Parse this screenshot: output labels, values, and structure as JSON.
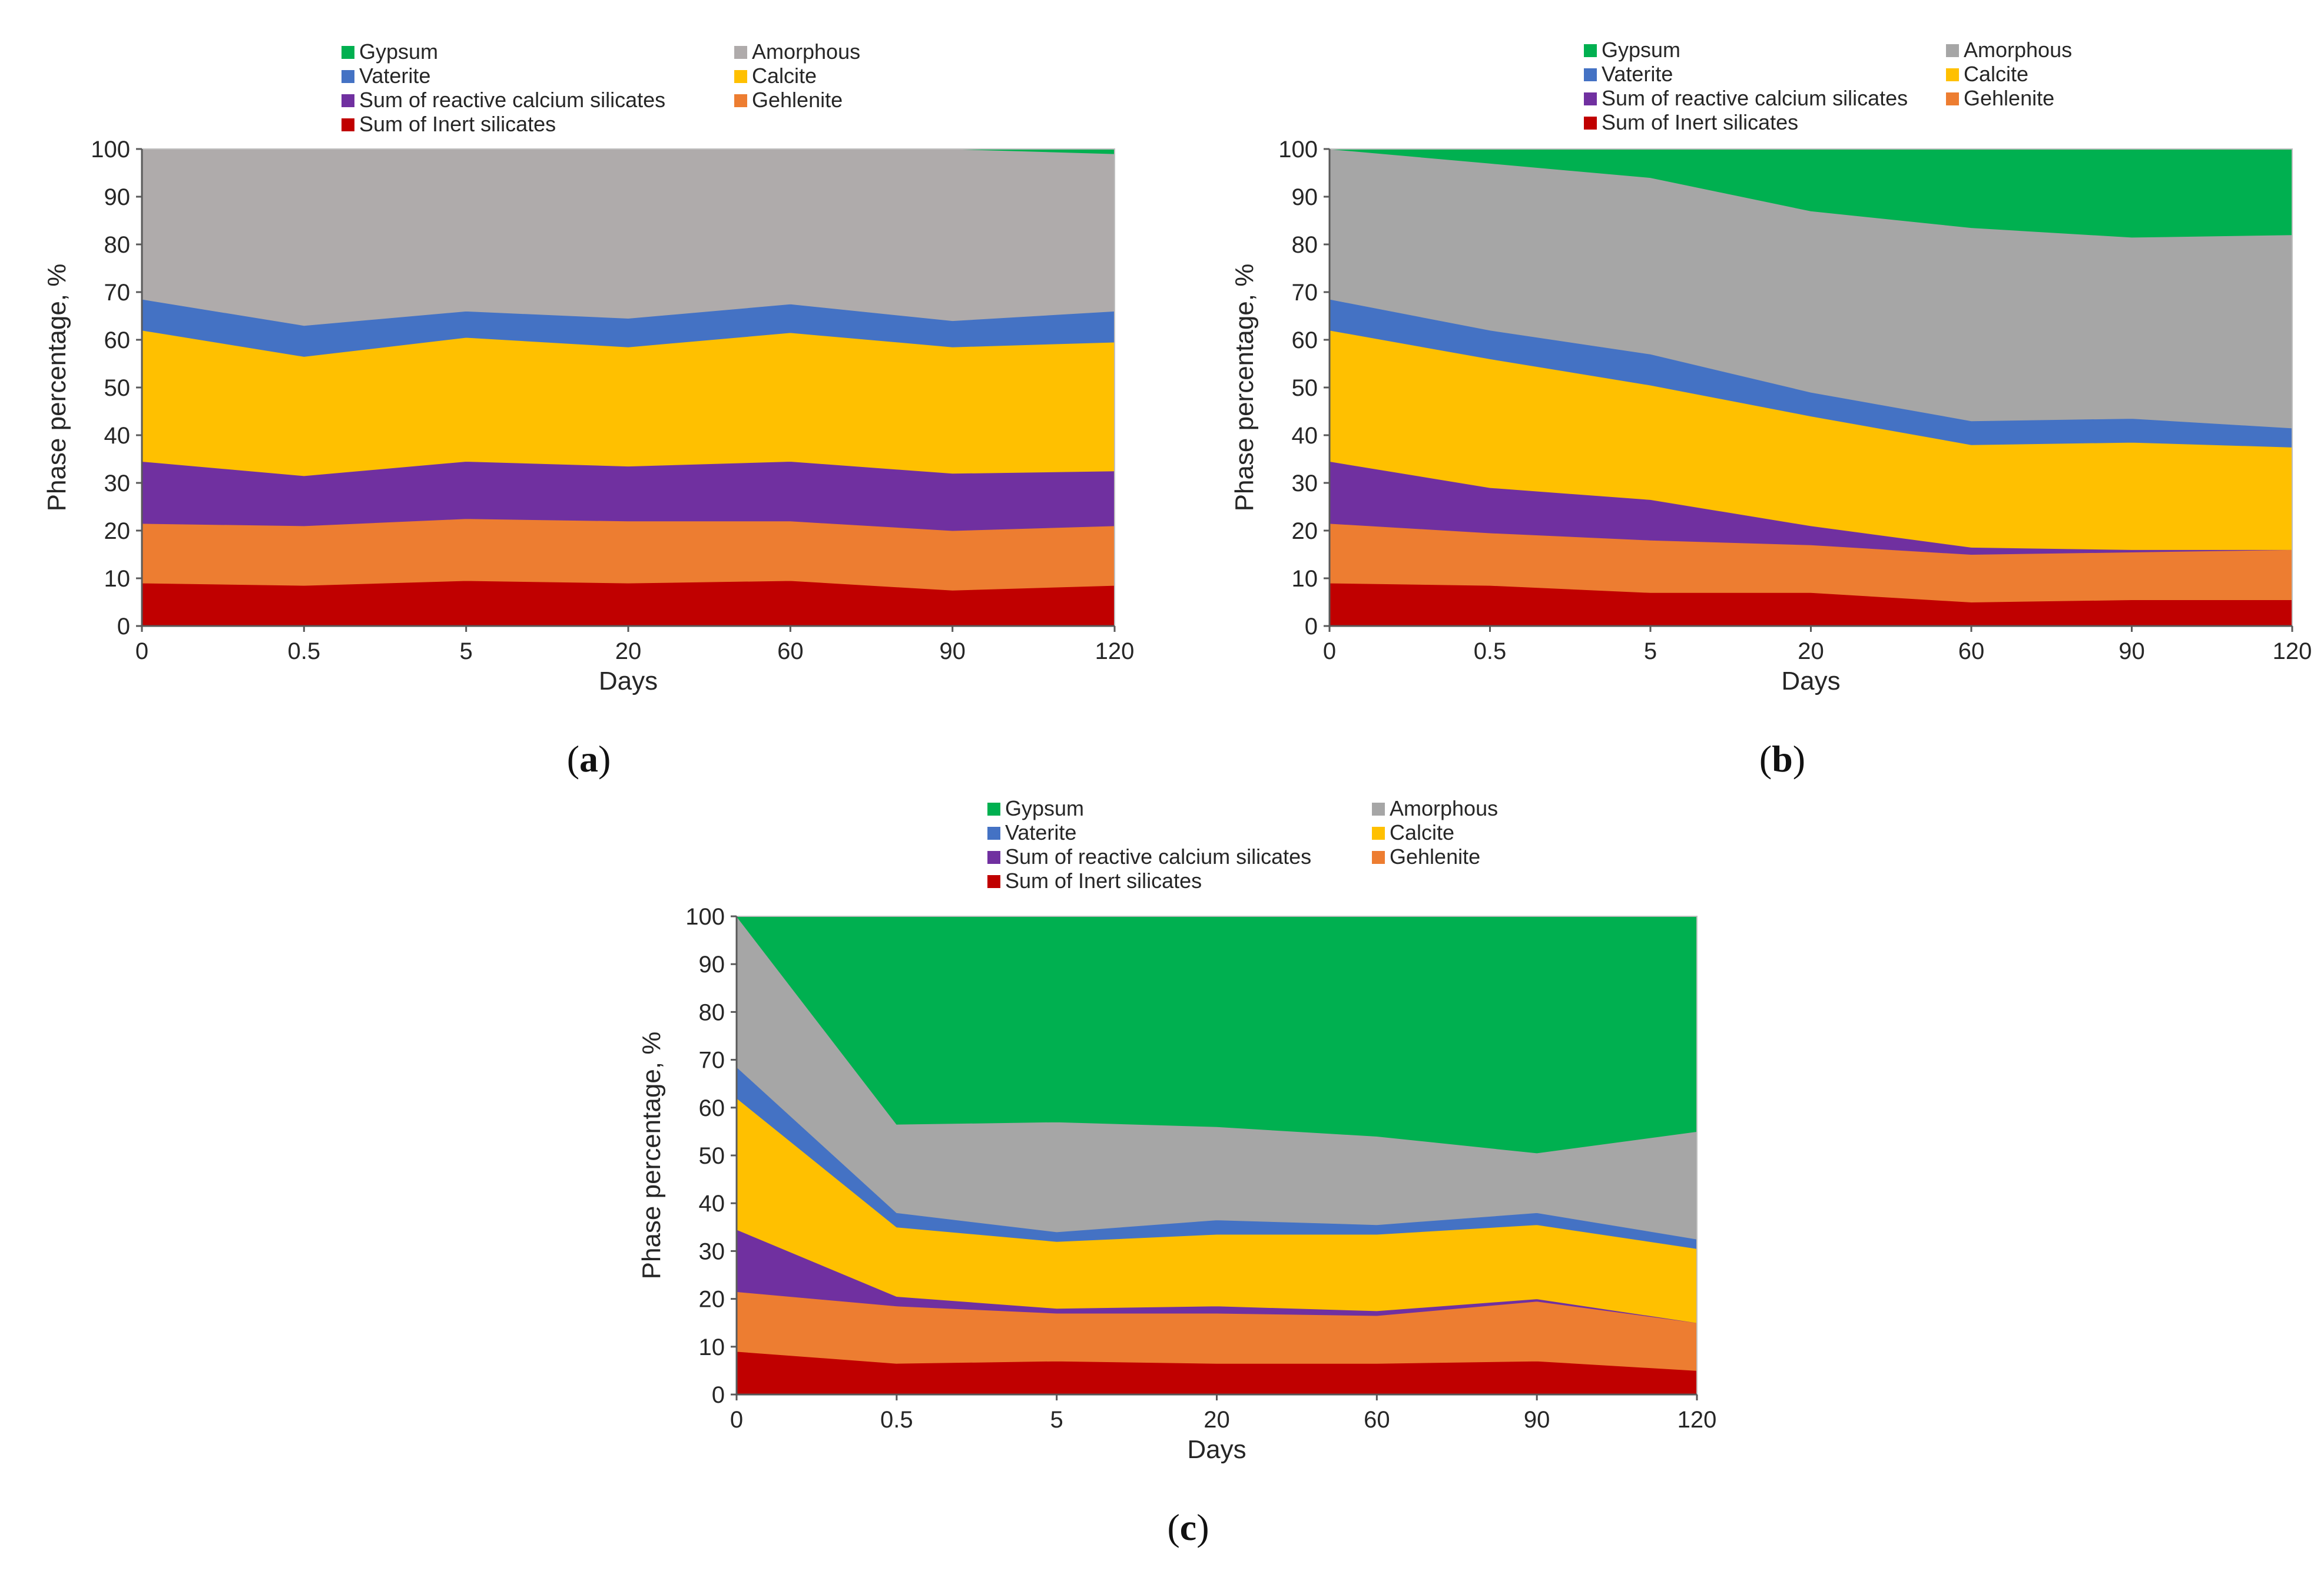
{
  "colors": {
    "Gypsum": "#00B050",
    "Amorphous": "#A6A6A6",
    "Vaterite": "#4472C4",
    "Calcite": "#FFC000",
    "Sum of reactive calcium silicates": "#7030A0",
    "Gehlenite": "#ED7D31",
    "Sum of Inert silicates": "#C00000",
    "Amorphous_a": "#AFABAB"
  },
  "legend_order": [
    "Gypsum",
    "Amorphous",
    "Vaterite",
    "Calcite",
    "Sum of reactive calcium silicates",
    "Gehlenite",
    "Sum of Inert silicates"
  ],
  "chart_data": [
    {
      "type": "area",
      "stacked": true,
      "panel_label": "a",
      "xlabel": "Days",
      "ylabel": "Phase percentage, %",
      "categories": [
        "0",
        "0.5",
        "5",
        "20",
        "60",
        "90",
        "120"
      ],
      "ylim": [
        0,
        100
      ],
      "yticks": [
        0,
        10,
        20,
        30,
        40,
        50,
        60,
        70,
        80,
        90,
        100
      ],
      "legend_position": "top",
      "series": [
        {
          "name": "Sum of Inert silicates",
          "values": [
            9,
            8.5,
            9.5,
            9,
            9.5,
            7.5,
            8.5
          ]
        },
        {
          "name": "Gehlenite",
          "values": [
            12.5,
            12.5,
            13,
            13,
            12.5,
            12.5,
            12.5
          ]
        },
        {
          "name": "Sum of reactive calcium silicates",
          "values": [
            13,
            10.5,
            12,
            11.5,
            12.5,
            12,
            11.5
          ]
        },
        {
          "name": "Calcite",
          "values": [
            27.5,
            25,
            26,
            25,
            27,
            26.5,
            27
          ]
        },
        {
          "name": "Vaterite",
          "values": [
            6.5,
            6.5,
            5.5,
            6,
            6,
            5.5,
            6.5
          ]
        },
        {
          "name": "Amorphous",
          "values": [
            31.5,
            37,
            34,
            35.5,
            32.5,
            36,
            33
          ]
        },
        {
          "name": "Gypsum",
          "values": [
            0,
            0,
            0,
            0,
            0,
            0,
            1
          ]
        }
      ]
    },
    {
      "type": "area",
      "stacked": true,
      "panel_label": "b",
      "xlabel": "Days",
      "ylabel": "Phase percentage, %",
      "categories": [
        "0",
        "0.5",
        "5",
        "20",
        "60",
        "90",
        "120"
      ],
      "ylim": [
        0,
        100
      ],
      "yticks": [
        0,
        10,
        20,
        30,
        40,
        50,
        60,
        70,
        80,
        90,
        100
      ],
      "legend_position": "top",
      "series": [
        {
          "name": "Sum of Inert silicates",
          "values": [
            9,
            8.5,
            7,
            7,
            5,
            5.5,
            5.5
          ]
        },
        {
          "name": "Gehlenite",
          "values": [
            12.5,
            11,
            11,
            10,
            10,
            10,
            10.5
          ]
        },
        {
          "name": "Sum of reactive calcium silicates",
          "values": [
            13,
            9.5,
            8.5,
            4,
            1.5,
            0.5,
            0
          ]
        },
        {
          "name": "Calcite",
          "values": [
            27.5,
            27,
            24,
            23,
            21.5,
            22.5,
            21.5
          ]
        },
        {
          "name": "Vaterite",
          "values": [
            6.5,
            6,
            6.5,
            5,
            5,
            5,
            4
          ]
        },
        {
          "name": "Amorphous",
          "values": [
            31.5,
            35,
            37,
            38,
            40.5,
            38,
            40.5
          ]
        },
        {
          "name": "Gypsum",
          "values": [
            0,
            3,
            6,
            13,
            16.5,
            18.5,
            18
          ]
        }
      ]
    },
    {
      "type": "area",
      "stacked": true,
      "panel_label": "c",
      "xlabel": "Days",
      "ylabel": "Phase percentage, %",
      "categories": [
        "0",
        "0.5",
        "5",
        "20",
        "60",
        "90",
        "120"
      ],
      "ylim": [
        0,
        100
      ],
      "yticks": [
        0,
        10,
        20,
        30,
        40,
        50,
        60,
        70,
        80,
        90,
        100
      ],
      "legend_position": "top",
      "series": [
        {
          "name": "Sum of Inert silicates",
          "values": [
            9,
            6.5,
            7,
            6.5,
            6.5,
            7,
            5
          ]
        },
        {
          "name": "Gehlenite",
          "values": [
            12.5,
            12,
            10,
            10.5,
            10,
            12.5,
            10
          ]
        },
        {
          "name": "Sum of reactive calcium silicates",
          "values": [
            13,
            2,
            1,
            1.5,
            1,
            0.5,
            0
          ]
        },
        {
          "name": "Calcite",
          "values": [
            27.5,
            14.5,
            14,
            15,
            16,
            15.5,
            15.5
          ]
        },
        {
          "name": "Vaterite",
          "values": [
            6.5,
            3,
            2,
            3,
            2,
            2.5,
            2
          ]
        },
        {
          "name": "Amorphous",
          "values": [
            31.5,
            18.5,
            23,
            19.5,
            18.5,
            12.5,
            22.5
          ]
        },
        {
          "name": "Gypsum",
          "values": [
            0,
            43.5,
            43,
            44,
            46,
            49.5,
            45
          ]
        }
      ]
    }
  ]
}
